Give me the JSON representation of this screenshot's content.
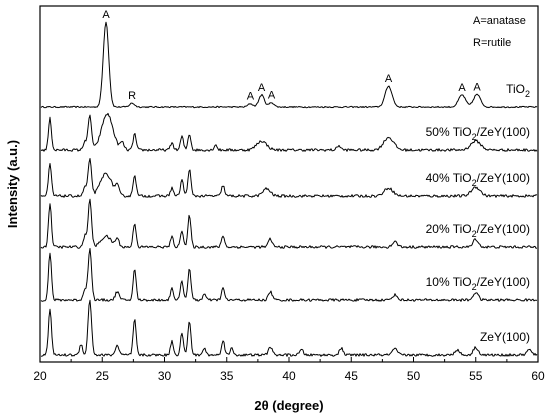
{
  "chart_data": {
    "type": "line",
    "xlabel": "2θ (degree)",
    "ylabel": "Intensity (a.u.)",
    "xlim": [
      20,
      60
    ],
    "xticks": [
      "20",
      "25",
      "30",
      "35",
      "40",
      "45",
      "50",
      "55",
      "60"
    ],
    "legend": [
      "A=anatase",
      "R=rutile"
    ],
    "series": [
      {
        "label_parts": [
          "TiO",
          "2",
          ""
        ],
        "baseline": 0,
        "noise": 0.4,
        "peaks": [
          {
            "x": 25.3,
            "h": 15.5,
            "w": 0.22
          },
          {
            "x": 27.4,
            "h": 0.7,
            "w": 0.2
          },
          {
            "x": 36.9,
            "h": 0.6,
            "w": 0.2
          },
          {
            "x": 37.8,
            "h": 2.2,
            "w": 0.22
          },
          {
            "x": 38.6,
            "h": 0.8,
            "w": 0.2
          },
          {
            "x": 48.0,
            "h": 3.8,
            "w": 0.28
          },
          {
            "x": 53.9,
            "h": 2.2,
            "w": 0.28
          },
          {
            "x": 55.1,
            "h": 2.3,
            "w": 0.28
          }
        ]
      },
      {
        "label_parts": [
          "50% TiO",
          "2",
          "/ZeY(100)"
        ],
        "baseline": 1,
        "noise": 0.5,
        "peaks": [
          {
            "x": 20.8,
            "h": 3.5,
            "w": 0.12
          },
          {
            "x": 23.6,
            "h": 1.0,
            "w": 0.12
          },
          {
            "x": 24.0,
            "h": 3.8,
            "w": 0.14
          },
          {
            "x": 25.4,
            "h": 4.0,
            "w": 0.45
          },
          {
            "x": 26.6,
            "h": 0.8,
            "w": 0.15
          },
          {
            "x": 27.6,
            "h": 1.8,
            "w": 0.12
          },
          {
            "x": 30.6,
            "h": 0.8,
            "w": 0.12
          },
          {
            "x": 31.4,
            "h": 1.5,
            "w": 0.12
          },
          {
            "x": 32.0,
            "h": 1.8,
            "w": 0.12
          },
          {
            "x": 34.1,
            "h": 0.6,
            "w": 0.12
          },
          {
            "x": 37.8,
            "h": 1.0,
            "w": 0.4
          },
          {
            "x": 44.0,
            "h": 0.5,
            "w": 0.15
          },
          {
            "x": 48.0,
            "h": 1.4,
            "w": 0.4
          },
          {
            "x": 55.0,
            "h": 1.0,
            "w": 0.4
          }
        ]
      },
      {
        "label_parts": [
          "40% TiO",
          "2",
          "/ZeY(100)"
        ],
        "baseline": 2,
        "noise": 0.5,
        "peaks": [
          {
            "x": 20.8,
            "h": 3.5,
            "w": 0.12
          },
          {
            "x": 23.6,
            "h": 1.0,
            "w": 0.12
          },
          {
            "x": 24.0,
            "h": 4.0,
            "w": 0.14
          },
          {
            "x": 25.3,
            "h": 2.5,
            "w": 0.45
          },
          {
            "x": 26.2,
            "h": 1.0,
            "w": 0.15
          },
          {
            "x": 27.6,
            "h": 2.4,
            "w": 0.12
          },
          {
            "x": 30.6,
            "h": 0.9,
            "w": 0.12
          },
          {
            "x": 31.4,
            "h": 1.8,
            "w": 0.12
          },
          {
            "x": 32.0,
            "h": 3.0,
            "w": 0.12
          },
          {
            "x": 34.7,
            "h": 1.2,
            "w": 0.12
          },
          {
            "x": 38.2,
            "h": 0.8,
            "w": 0.3
          },
          {
            "x": 48.0,
            "h": 0.9,
            "w": 0.35
          },
          {
            "x": 55.0,
            "h": 1.0,
            "w": 0.35
          }
        ]
      },
      {
        "label_parts": [
          "20% TiO",
          "2",
          "/ZeY(100)"
        ],
        "baseline": 3,
        "noise": 0.5,
        "peaks": [
          {
            "x": 20.8,
            "h": 4.8,
            "w": 0.12
          },
          {
            "x": 23.6,
            "h": 1.2,
            "w": 0.12
          },
          {
            "x": 24.0,
            "h": 5.2,
            "w": 0.14
          },
          {
            "x": 25.3,
            "h": 1.2,
            "w": 0.4
          },
          {
            "x": 26.2,
            "h": 0.9,
            "w": 0.15
          },
          {
            "x": 27.6,
            "h": 2.7,
            "w": 0.12
          },
          {
            "x": 30.6,
            "h": 1.1,
            "w": 0.12
          },
          {
            "x": 31.4,
            "h": 1.9,
            "w": 0.12
          },
          {
            "x": 32.0,
            "h": 3.5,
            "w": 0.12
          },
          {
            "x": 34.7,
            "h": 1.3,
            "w": 0.12
          },
          {
            "x": 38.5,
            "h": 0.9,
            "w": 0.15
          },
          {
            "x": 48.5,
            "h": 0.6,
            "w": 0.2
          },
          {
            "x": 55.0,
            "h": 0.9,
            "w": 0.2
          }
        ]
      },
      {
        "label_parts": [
          "10% TiO",
          "2",
          "/ZeY(100)"
        ],
        "baseline": 4,
        "noise": 0.5,
        "peaks": [
          {
            "x": 20.8,
            "h": 5.5,
            "w": 0.12
          },
          {
            "x": 23.6,
            "h": 1.3,
            "w": 0.12
          },
          {
            "x": 24.0,
            "h": 6.0,
            "w": 0.14
          },
          {
            "x": 26.2,
            "h": 1.0,
            "w": 0.15
          },
          {
            "x": 27.6,
            "h": 3.6,
            "w": 0.12
          },
          {
            "x": 30.6,
            "h": 1.4,
            "w": 0.12
          },
          {
            "x": 31.4,
            "h": 2.2,
            "w": 0.12
          },
          {
            "x": 32.0,
            "h": 3.8,
            "w": 0.12
          },
          {
            "x": 33.2,
            "h": 0.7,
            "w": 0.12
          },
          {
            "x": 34.7,
            "h": 1.4,
            "w": 0.12
          },
          {
            "x": 38.5,
            "h": 1.0,
            "w": 0.15
          },
          {
            "x": 48.5,
            "h": 0.6,
            "w": 0.2
          },
          {
            "x": 55.0,
            "h": 0.9,
            "w": 0.2
          }
        ]
      },
      {
        "label_parts": [
          "ZeY(100)",
          "",
          ""
        ],
        "baseline": 5,
        "noise": 0.5,
        "peaks": [
          {
            "x": 20.8,
            "h": 5.5,
            "w": 0.12
          },
          {
            "x": 23.3,
            "h": 1.3,
            "w": 0.12
          },
          {
            "x": 24.0,
            "h": 6.5,
            "w": 0.14
          },
          {
            "x": 26.2,
            "h": 1.1,
            "w": 0.15
          },
          {
            "x": 27.6,
            "h": 4.2,
            "w": 0.12
          },
          {
            "x": 30.6,
            "h": 1.6,
            "w": 0.12
          },
          {
            "x": 31.4,
            "h": 2.6,
            "w": 0.12
          },
          {
            "x": 32.0,
            "h": 4.0,
            "w": 0.12
          },
          {
            "x": 33.2,
            "h": 0.8,
            "w": 0.12
          },
          {
            "x": 34.7,
            "h": 1.8,
            "w": 0.12
          },
          {
            "x": 35.4,
            "h": 0.8,
            "w": 0.12
          },
          {
            "x": 38.5,
            "h": 1.0,
            "w": 0.15
          },
          {
            "x": 41.0,
            "h": 0.6,
            "w": 0.15
          },
          {
            "x": 44.2,
            "h": 0.8,
            "w": 0.15
          },
          {
            "x": 48.5,
            "h": 0.7,
            "w": 0.2
          },
          {
            "x": 53.5,
            "h": 0.6,
            "w": 0.2
          },
          {
            "x": 55.0,
            "h": 0.9,
            "w": 0.2
          },
          {
            "x": 59.3,
            "h": 0.6,
            "w": 0.2
          }
        ]
      }
    ],
    "peak_labels": [
      {
        "text": "A",
        "x": 25.3
      },
      {
        "text": "R",
        "x": 27.4
      },
      {
        "text": "A",
        "x": 36.9
      },
      {
        "text": "A",
        "x": 37.8
      },
      {
        "text": "A",
        "x": 38.6
      },
      {
        "text": "A",
        "x": 48.0
      },
      {
        "text": "A",
        "x": 53.9
      },
      {
        "text": "A",
        "x": 55.1
      }
    ]
  }
}
